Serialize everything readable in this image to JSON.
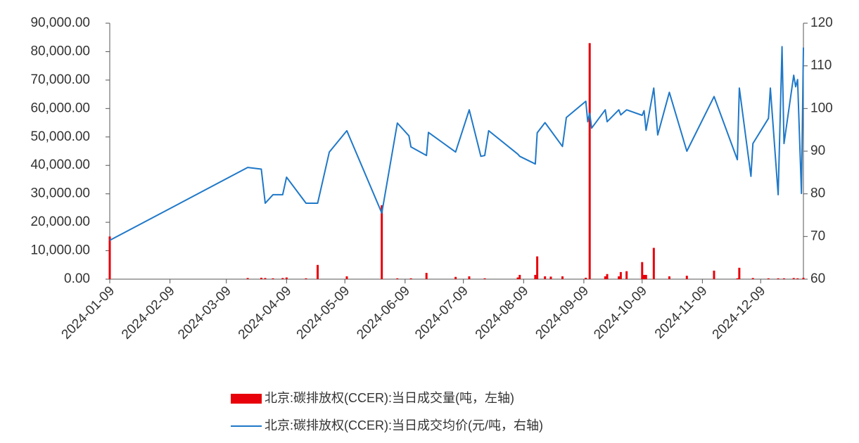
{
  "chart_data": {
    "type": "combo",
    "xlim": [
      "2024-01-09",
      "2024-12-31"
    ],
    "xticks": [
      "2024-01-09",
      "2024-02-09",
      "2024-03-09",
      "2024-04-09",
      "2024-05-09",
      "2024-06-09",
      "2024-07-09",
      "2024-08-09",
      "2024-09-09",
      "2024-10-09",
      "2024-11-09",
      "2024-12-09"
    ],
    "ylim": [
      0,
      90000
    ],
    "yticks": [
      {
        "value": 0,
        "label": "0.00"
      },
      {
        "value": 10000,
        "label": "10,000.00"
      },
      {
        "value": 20000,
        "label": "20,000.00"
      },
      {
        "value": 30000,
        "label": "30,000.00"
      },
      {
        "value": 40000,
        "label": "40,000.00"
      },
      {
        "value": 50000,
        "label": "50,000.00"
      },
      {
        "value": 60000,
        "label": "60,000.00"
      },
      {
        "value": 70000,
        "label": "70,000.00"
      },
      {
        "value": 80000,
        "label": "80,000.00"
      },
      {
        "value": 90000,
        "label": "90,000.00"
      }
    ],
    "y2lim": [
      60,
      120
    ],
    "y2ticks": [
      60,
      70,
      80,
      90,
      100,
      110,
      120
    ],
    "series": [
      {
        "name": "北京:碳排放权(CCER):当日成交量(吨，左轴)",
        "type": "bar",
        "axis": "y",
        "color": "#e8000b",
        "x": [
          "2024-01-09",
          "2024-03-20",
          "2024-03-27",
          "2024-03-29",
          "2024-04-02",
          "2024-04-07",
          "2024-04-09",
          "2024-04-19",
          "2024-04-25",
          "2024-05-10",
          "2024-05-28",
          "2024-06-05",
          "2024-06-12",
          "2024-06-20",
          "2024-07-05",
          "2024-07-12",
          "2024-07-20",
          "2024-08-06",
          "2024-08-07",
          "2024-08-15",
          "2024-08-16",
          "2024-08-20",
          "2024-08-23",
          "2024-08-29",
          "2024-09-10",
          "2024-09-12",
          "2024-09-20",
          "2024-09-21",
          "2024-09-27",
          "2024-09-28",
          "2024-10-01",
          "2024-10-09",
          "2024-10-10",
          "2024-10-11",
          "2024-10-15",
          "2024-10-23",
          "2024-11-01",
          "2024-11-15",
          "2024-11-27",
          "2024-11-28",
          "2024-12-05",
          "2024-12-13",
          "2024-12-18",
          "2024-12-21",
          "2024-12-26",
          "2024-12-28",
          "2024-12-31"
        ],
        "values": [
          15000,
          400,
          500,
          400,
          300,
          400,
          600,
          300,
          5000,
          1000,
          26000,
          300,
          300,
          2200,
          800,
          1000,
          300,
          600,
          1500,
          1500,
          8000,
          1000,
          900,
          1000,
          500,
          83000,
          1000,
          1800,
          1000,
          2500,
          2800,
          6000,
          1500,
          1500,
          11000,
          1000,
          1200,
          3000,
          300,
          4000,
          400,
          300,
          300,
          300,
          400,
          300,
          500
        ]
      },
      {
        "name": "北京:碳排放权(CCER):当日成交均价(元/吨，右轴)",
        "type": "line",
        "axis": "y2",
        "color": "#1f78c8",
        "x": [
          "2024-01-09",
          "2024-03-20",
          "2024-03-27",
          "2024-03-29",
          "2024-04-02",
          "2024-04-07",
          "2024-04-09",
          "2024-04-19",
          "2024-04-25",
          "2024-05-01",
          "2024-05-10",
          "2024-05-28",
          "2024-06-05",
          "2024-06-11",
          "2024-06-12",
          "2024-06-20",
          "2024-06-21",
          "2024-07-05",
          "2024-07-12",
          "2024-07-18",
          "2024-07-20",
          "2024-07-22",
          "2024-08-06",
          "2024-08-07",
          "2024-08-15",
          "2024-08-16",
          "2024-08-20",
          "2024-08-29",
          "2024-08-31",
          "2024-09-10",
          "2024-09-11",
          "2024-09-12",
          "2024-09-13",
          "2024-09-20",
          "2024-09-21",
          "2024-09-27",
          "2024-09-28",
          "2024-10-01",
          "2024-10-09",
          "2024-10-10",
          "2024-10-11",
          "2024-10-15",
          "2024-10-17",
          "2024-10-23",
          "2024-11-01",
          "2024-11-15",
          "2024-11-27",
          "2024-11-28",
          "2024-12-04",
          "2024-12-05",
          "2024-12-13",
          "2024-12-14",
          "2024-12-18",
          "2024-12-20",
          "2024-12-21",
          "2024-12-26",
          "2024-12-27",
          "2024-12-28",
          "2024-12-30",
          "2024-12-31"
        ],
        "values": [
          69.1,
          86.2,
          85.8,
          77.8,
          79.8,
          79.8,
          83.9,
          77.8,
          77.8,
          89.8,
          94.8,
          75.5,
          96.6,
          93.6,
          91,
          89,
          94.4,
          89.8,
          99.7,
          88.8,
          89,
          94.8,
          89.3,
          88.8,
          87,
          94.3,
          96.7,
          91.1,
          97.9,
          101.7,
          96.9,
          98.9,
          95.4,
          99.7,
          96.9,
          99.7,
          98.5,
          99.7,
          98.4,
          99.5,
          94.9,
          104.8,
          93.8,
          103.8,
          90,
          102.8,
          88,
          104.8,
          84.1,
          91.8,
          97.7,
          104.8,
          79.8,
          114.5,
          91.8,
          107.8,
          105.1,
          106.8,
          80.1,
          114.3
        ]
      }
    ]
  }
}
